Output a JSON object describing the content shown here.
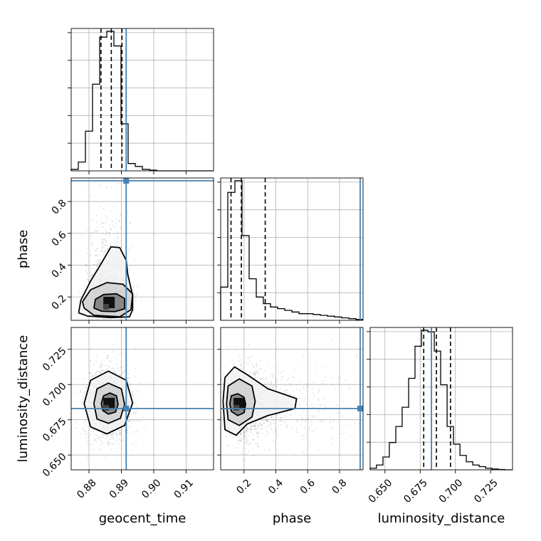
{
  "chart_data": {
    "type": "corner",
    "parameters": [
      "geocent_time",
      "phase",
      "luminosity_distance"
    ],
    "axis_labels": {
      "x": [
        "geocent_time",
        "phase",
        "luminosity_distance"
      ],
      "y": [
        "",
        "phase",
        "luminosity_distance"
      ]
    },
    "truths": {
      "geocent_time": 0.8915,
      "phase": 0.93,
      "luminosity_distance": 0.683
    },
    "truth_color": "#4682b4",
    "grid": true,
    "ranges": {
      "geocent_time": [
        0.8745,
        0.9185
      ],
      "phase": [
        0.053,
        0.948
      ],
      "luminosity_distance": [
        0.6395,
        0.7405
      ]
    },
    "ticks": {
      "geocent_time": [
        0.88,
        0.89,
        0.9,
        0.91
      ],
      "phase": [
        0.2,
        0.4,
        0.6,
        0.8
      ],
      "luminosity_distance": [
        0.65,
        0.675,
        0.7,
        0.725
      ]
    },
    "tick_labels": {
      "geocent_time": [
        "0.88",
        "0.89",
        "0.90",
        "0.91"
      ],
      "phase": [
        "0.2",
        "0.4",
        "0.6",
        "0.8"
      ],
      "luminosity_distance": [
        "0.650",
        "0.675",
        "0.700",
        "0.725"
      ]
    },
    "histograms": {
      "geocent_time": {
        "edges": [
          0.8745,
          0.8767,
          0.8789,
          0.8811,
          0.8833,
          0.8855,
          0.8877,
          0.8899,
          0.8921,
          0.8943,
          0.8965,
          0.8987,
          0.9009,
          0.9031,
          0.9053,
          0.9075,
          0.9097,
          0.9119,
          0.9141,
          0.9163,
          0.9185
        ],
        "counts": [
          0.01,
          0.06,
          0.27,
          0.59,
          0.91,
          0.95,
          0.85,
          0.32,
          0.05,
          0.03,
          0.01,
          0.005,
          0.0,
          0.0,
          0.0,
          0.0,
          0.0,
          0.0,
          0.0,
          0.0
        ],
        "quantiles": [
          0.8837,
          0.8869,
          0.8902
        ]
      },
      "phase": {
        "edges": [
          0.053,
          0.0977,
          0.1425,
          0.1872,
          0.232,
          0.2768,
          0.3215,
          0.3663,
          0.411,
          0.4558,
          0.5005,
          0.5453,
          0.59,
          0.6348,
          0.6795,
          0.7243,
          0.769,
          0.8138,
          0.8585,
          0.9033,
          0.948
        ],
        "counts": [
          0.2,
          0.77,
          0.84,
          0.51,
          0.25,
          0.14,
          0.1,
          0.08,
          0.07,
          0.06,
          0.05,
          0.04,
          0.04,
          0.035,
          0.03,
          0.025,
          0.02,
          0.015,
          0.01,
          0.005
        ],
        "quantiles": [
          0.118,
          0.183,
          0.333
        ]
      },
      "luminosity_distance": {
        "edges": [
          0.6395,
          0.644,
          0.6486,
          0.6531,
          0.6577,
          0.6622,
          0.6668,
          0.6713,
          0.6759,
          0.6804,
          0.685,
          0.6895,
          0.6941,
          0.6986,
          0.7032,
          0.7077,
          0.7123,
          0.7168,
          0.7214,
          0.7259,
          0.7305,
          0.735,
          0.7405
        ],
        "counts": [
          0.01,
          0.03,
          0.08,
          0.17,
          0.27,
          0.39,
          0.57,
          0.77,
          0.87,
          0.86,
          0.74,
          0.53,
          0.27,
          0.16,
          0.09,
          0.05,
          0.03,
          0.02,
          0.01,
          0.005,
          0.002,
          0.0
        ],
        "quantiles": [
          0.6775,
          0.6865,
          0.6965
        ]
      }
    },
    "density_2d": [
      {
        "x": "geocent_time",
        "y": "phase",
        "center": [
          0.8862,
          0.165
        ],
        "spread": [
          0.0032,
          0.16
        ],
        "contours": [
          [
            [
              0.8815,
              0.13
            ],
            [
              0.884,
              0.11
            ],
            [
              0.888,
              0.108
            ],
            [
              0.891,
              0.125
            ],
            [
              0.891,
              0.19
            ],
            [
              0.8885,
              0.22
            ],
            [
              0.8845,
              0.215
            ],
            [
              0.882,
              0.185
            ],
            [
              0.8815,
              0.13
            ]
          ],
          [
            [
              0.8785,
              0.13
            ],
            [
              0.8815,
              0.085
            ],
            [
              0.8895,
              0.075
            ],
            [
              0.893,
              0.12
            ],
            [
              0.8935,
              0.22
            ],
            [
              0.8905,
              0.28
            ],
            [
              0.8855,
              0.29
            ],
            [
              0.8805,
              0.245
            ],
            [
              0.878,
              0.17
            ],
            [
              0.8785,
              0.13
            ]
          ],
          [
            [
              0.8768,
              0.1
            ],
            [
              0.8795,
              0.08
            ],
            [
              0.8865,
              0.07
            ],
            [
              0.8925,
              0.075
            ],
            [
              0.8935,
              0.12
            ],
            [
              0.8935,
              0.21
            ],
            [
              0.892,
              0.34
            ],
            [
              0.8915,
              0.43
            ],
            [
              0.8895,
              0.51
            ],
            [
              0.8868,
              0.515
            ],
            [
              0.8855,
              0.47
            ],
            [
              0.8835,
              0.4
            ],
            [
              0.8805,
              0.3
            ],
            [
              0.8775,
              0.18
            ],
            [
              0.8768,
              0.1
            ]
          ]
        ]
      },
      {
        "x": "geocent_time",
        "y": "luminosity_distance",
        "center": [
          0.8862,
          0.6865
        ],
        "spread": [
          0.0035,
          0.0135
        ],
        "contours": [
          [
            [
              0.8838,
              0.6865
            ],
            [
              0.8845,
              0.692
            ],
            [
              0.8865,
              0.694
            ],
            [
              0.8885,
              0.692
            ],
            [
              0.889,
              0.686
            ],
            [
              0.8882,
              0.6805
            ],
            [
              0.886,
              0.679
            ],
            [
              0.8843,
              0.6815
            ],
            [
              0.8838,
              0.6865
            ]
          ],
          [
            [
              0.8815,
              0.6865
            ],
            [
              0.8825,
              0.697
            ],
            [
              0.886,
              0.701
            ],
            [
              0.89,
              0.697
            ],
            [
              0.891,
              0.686
            ],
            [
              0.8897,
              0.676
            ],
            [
              0.886,
              0.6725
            ],
            [
              0.8825,
              0.6755
            ],
            [
              0.8815,
              0.6865
            ]
          ],
          [
            [
              0.8785,
              0.6865
            ],
            [
              0.8805,
              0.703
            ],
            [
              0.886,
              0.7095
            ],
            [
              0.8915,
              0.703
            ],
            [
              0.8935,
              0.687
            ],
            [
              0.891,
              0.671
            ],
            [
              0.8855,
              0.665
            ],
            [
              0.8805,
              0.67
            ],
            [
              0.8785,
              0.6865
            ]
          ]
        ]
      },
      {
        "x": "phase",
        "y": "luminosity_distance",
        "center": [
          0.17,
          0.6865
        ],
        "spread": [
          0.08,
          0.0135
        ],
        "contours": [
          [
            [
              0.11,
              0.6865
            ],
            [
              0.12,
              0.692
            ],
            [
              0.16,
              0.6935
            ],
            [
              0.2,
              0.691
            ],
            [
              0.21,
              0.686
            ],
            [
              0.2,
              0.68
            ],
            [
              0.16,
              0.678
            ],
            [
              0.12,
              0.681
            ],
            [
              0.11,
              0.6865
            ]
          ],
          [
            [
              0.09,
              0.6865
            ],
            [
              0.1,
              0.699
            ],
            [
              0.17,
              0.704
            ],
            [
              0.25,
              0.699
            ],
            [
              0.27,
              0.688
            ],
            [
              0.25,
              0.677
            ],
            [
              0.17,
              0.671
            ],
            [
              0.1,
              0.675
            ],
            [
              0.09,
              0.6865
            ]
          ],
          [
            [
              0.068,
              0.688
            ],
            [
              0.08,
              0.705
            ],
            [
              0.14,
              0.7125
            ],
            [
              0.22,
              0.707
            ],
            [
              0.35,
              0.697
            ],
            [
              0.53,
              0.69
            ],
            [
              0.52,
              0.683
            ],
            [
              0.35,
              0.678
            ],
            [
              0.22,
              0.672
            ],
            [
              0.15,
              0.664
            ],
            [
              0.08,
              0.668
            ],
            [
              0.068,
              0.688
            ]
          ]
        ]
      }
    ],
    "title": ""
  }
}
